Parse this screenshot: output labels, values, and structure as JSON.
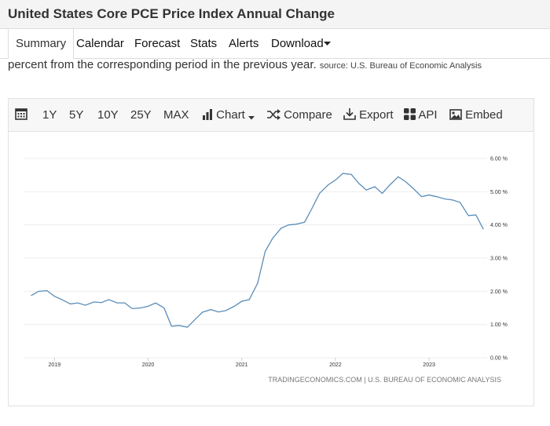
{
  "header": {
    "title": "United States Core PCE Price Index Annual Change"
  },
  "nav": {
    "tabs": [
      "Summary",
      "Calendar",
      "Forecast",
      "Stats",
      "Alerts",
      "Download"
    ]
  },
  "description": {
    "text": "percent from the corresponding period in the previous year.",
    "source": "source: U.S. Bureau of Economic Analysis"
  },
  "toolbar": {
    "items": [
      "1Y",
      "5Y",
      "10Y",
      "25Y",
      "MAX",
      "Chart",
      "Compare",
      "Export",
      "API",
      "Embed"
    ]
  },
  "chart_data": {
    "type": "line",
    "credit": "TRADINGECONOMICS.COM | U.S. BUREAU OF ECONOMIC ANALYSIS",
    "x": [
      2018.75,
      2018.83,
      2018.92,
      2019.0,
      2019.08,
      2019.17,
      2019.25,
      2019.33,
      2019.42,
      2019.5,
      2019.58,
      2019.67,
      2019.75,
      2019.83,
      2019.92,
      2020.0,
      2020.08,
      2020.17,
      2020.25,
      2020.33,
      2020.42,
      2020.5,
      2020.58,
      2020.67,
      2020.75,
      2020.83,
      2020.92,
      2021.0,
      2021.08,
      2021.17,
      2021.25,
      2021.33,
      2021.42,
      2021.5,
      2021.58,
      2021.67,
      2021.75,
      2021.83,
      2021.92,
      2022.0,
      2022.08,
      2022.17,
      2022.25,
      2022.33,
      2022.42,
      2022.5,
      2022.58,
      2022.67,
      2022.75,
      2022.83,
      2022.92,
      2023.0,
      2023.08,
      2023.17,
      2023.25,
      2023.33,
      2023.42,
      2023.5,
      2023.58
    ],
    "series": [
      {
        "color": "#5b8db8",
        "values": [
          1.87,
          2.0,
          2.02,
          1.85,
          1.75,
          1.62,
          1.65,
          1.58,
          1.68,
          1.66,
          1.75,
          1.65,
          1.65,
          1.48,
          1.5,
          1.55,
          1.65,
          1.5,
          0.95,
          0.97,
          0.92,
          1.15,
          1.37,
          1.45,
          1.38,
          1.42,
          1.55,
          1.7,
          1.75,
          2.25,
          3.2,
          3.6,
          3.9,
          4.0,
          4.02,
          4.08,
          4.5,
          4.95,
          5.2,
          5.35,
          5.55,
          5.52,
          5.25,
          5.05,
          5.15,
          4.95,
          5.2,
          5.45,
          5.3,
          5.1,
          4.85,
          4.9,
          4.85,
          4.78,
          4.75,
          4.68,
          4.28,
          4.3,
          3.87
        ]
      }
    ],
    "xlim": [
      2018.67,
      2023.62
    ],
    "xticks": [
      2019,
      2020,
      2021,
      2022,
      2023
    ],
    "ylim": [
      0,
      6
    ],
    "yticks": [
      {
        "value": 0,
        "label": "0.00 %"
      },
      {
        "value": 1,
        "label": "1.00 %"
      },
      {
        "value": 2,
        "label": "2.00 %"
      },
      {
        "value": 3,
        "label": "3.00 %"
      },
      {
        "value": 4,
        "label": "4.00 %"
      },
      {
        "value": 5,
        "label": "5.00 %"
      },
      {
        "value": 6,
        "label": "6.00 %"
      }
    ],
    "grid": true
  }
}
